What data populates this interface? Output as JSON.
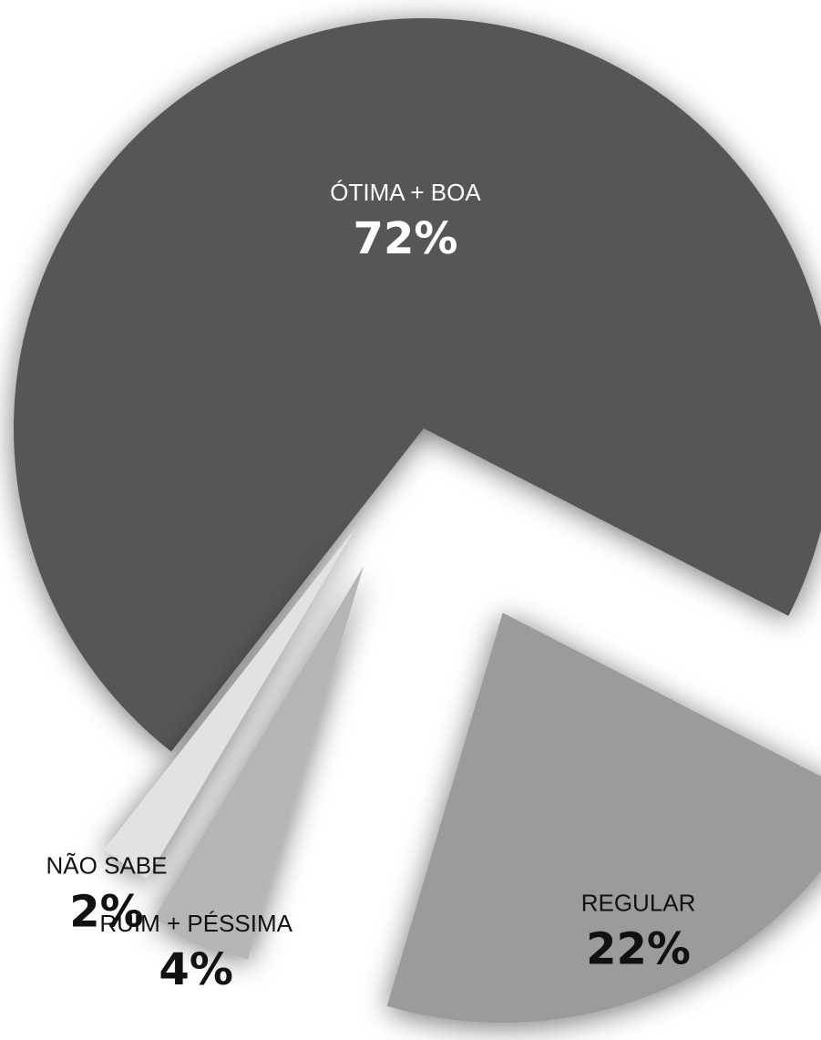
{
  "chart_data": {
    "type": "pie",
    "title": "",
    "legend": "none",
    "slices": [
      {
        "label": "ÓTIMA + BOA",
        "value": 72,
        "value_label": "72%",
        "color": "#575757"
      },
      {
        "label": "REGULAR",
        "value": 22,
        "value_label": "22%",
        "color": "#9b9b9b"
      },
      {
        "label": "RUIM + PÉSSIMA",
        "value": 4,
        "value_label": "4%",
        "color": "#b6b6b6"
      },
      {
        "label": "NÃO SABE",
        "value": 2,
        "value_label": "2%",
        "color": "#e2e2e2"
      }
    ]
  }
}
